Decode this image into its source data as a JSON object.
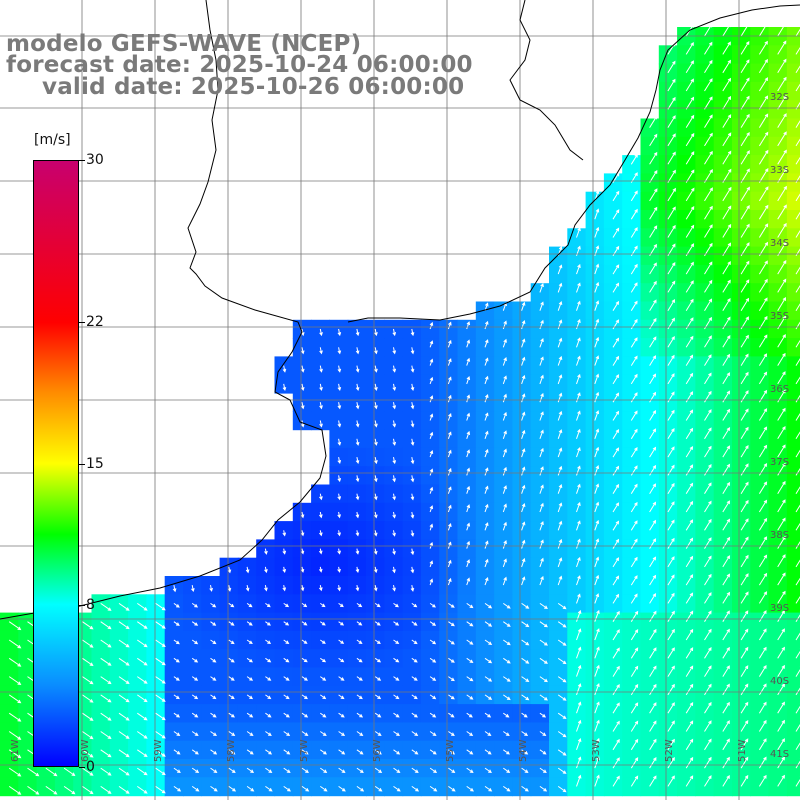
{
  "header": {
    "line1": "modelo GEFS-WAVE (NCEP)",
    "line2": "forecast date: 2025-10-24 06:00:00",
    "line3": "valid date: 2025-10-26 06:00:00"
  },
  "colorbar": {
    "unit": "[m/s]",
    "min": 0,
    "max": 30,
    "ticks": [
      "30",
      "22",
      "15",
      "8",
      "0"
    ],
    "tick_values": [
      30,
      22,
      15,
      8,
      0
    ],
    "stops": [
      {
        "v": 0,
        "color": "#0000ff"
      },
      {
        "v": 4,
        "color": "#0a8cff"
      },
      {
        "v": 8,
        "color": "#00ffff"
      },
      {
        "v": 11.5,
        "color": "#00ff00"
      },
      {
        "v": 15,
        "color": "#ffff00"
      },
      {
        "v": 18.5,
        "color": "#ff8c00"
      },
      {
        "v": 22,
        "color": "#ff0000"
      },
      {
        "v": 30,
        "color": "#c8006e"
      }
    ]
  },
  "map_labels": {
    "lat": [
      "32S",
      "33S",
      "34S",
      "35S",
      "36S",
      "37S",
      "38S",
      "39S",
      "40S",
      "41S"
    ],
    "lon": [
      "61W",
      "60W",
      "59W",
      "58W",
      "57W",
      "56W",
      "55W",
      "54W",
      "53W",
      "52W",
      "51W"
    ]
  },
  "colors": {
    "land": "#ffffff",
    "grid": "#777777",
    "coast": "#000000",
    "arrows": "#ffffff"
  }
}
